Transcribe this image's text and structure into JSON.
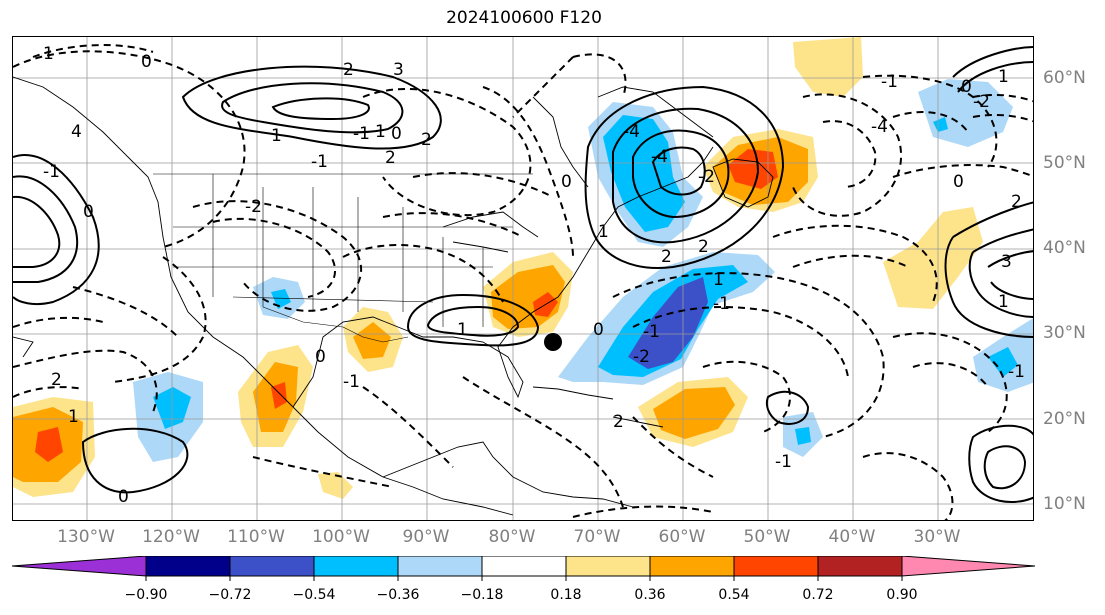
{
  "title": "2024100600 F120",
  "longitude_labels": [
    "130°W",
    "120°W",
    "110°W",
    "100°W",
    "90°W",
    "80°W",
    "70°W",
    "60°W",
    "50°W",
    "40°W",
    "30°W"
  ],
  "latitude_labels": [
    "60°N",
    "50°N",
    "40°N",
    "30°N",
    "20°N",
    "10°N"
  ],
  "colorbar": {
    "labels": [
      "−0.90",
      "−0.72",
      "−0.54",
      "−0.36",
      "−0.18",
      "0.18",
      "0.36",
      "0.54",
      "0.72",
      "0.90"
    ],
    "colors": [
      "#9b30d6",
      "#00008b",
      "#3c50c8",
      "#00bfff",
      "#add8f7",
      "#ffffff",
      "#fde38a",
      "#ffa500",
      "#ff4500",
      "#b22222",
      "#ff88b0"
    ]
  },
  "contour_labels": [
    "1",
    "0",
    "2",
    "3",
    "4",
    "1",
    "-1",
    "0",
    "-2",
    "-1",
    "2",
    "1",
    "0",
    "-1",
    "2",
    "1",
    "-1",
    "0",
    "1",
    "2",
    "0",
    "-4",
    "-4",
    "-2",
    "0",
    "1",
    "2",
    "2",
    "1",
    "-1",
    "0",
    "-1",
    "-2",
    "0",
    "1",
    "3",
    "1",
    "2",
    "-1",
    "-4",
    "0",
    "-1",
    "-1",
    "-2",
    "2"
  ],
  "marker": "storm-center-dot"
}
